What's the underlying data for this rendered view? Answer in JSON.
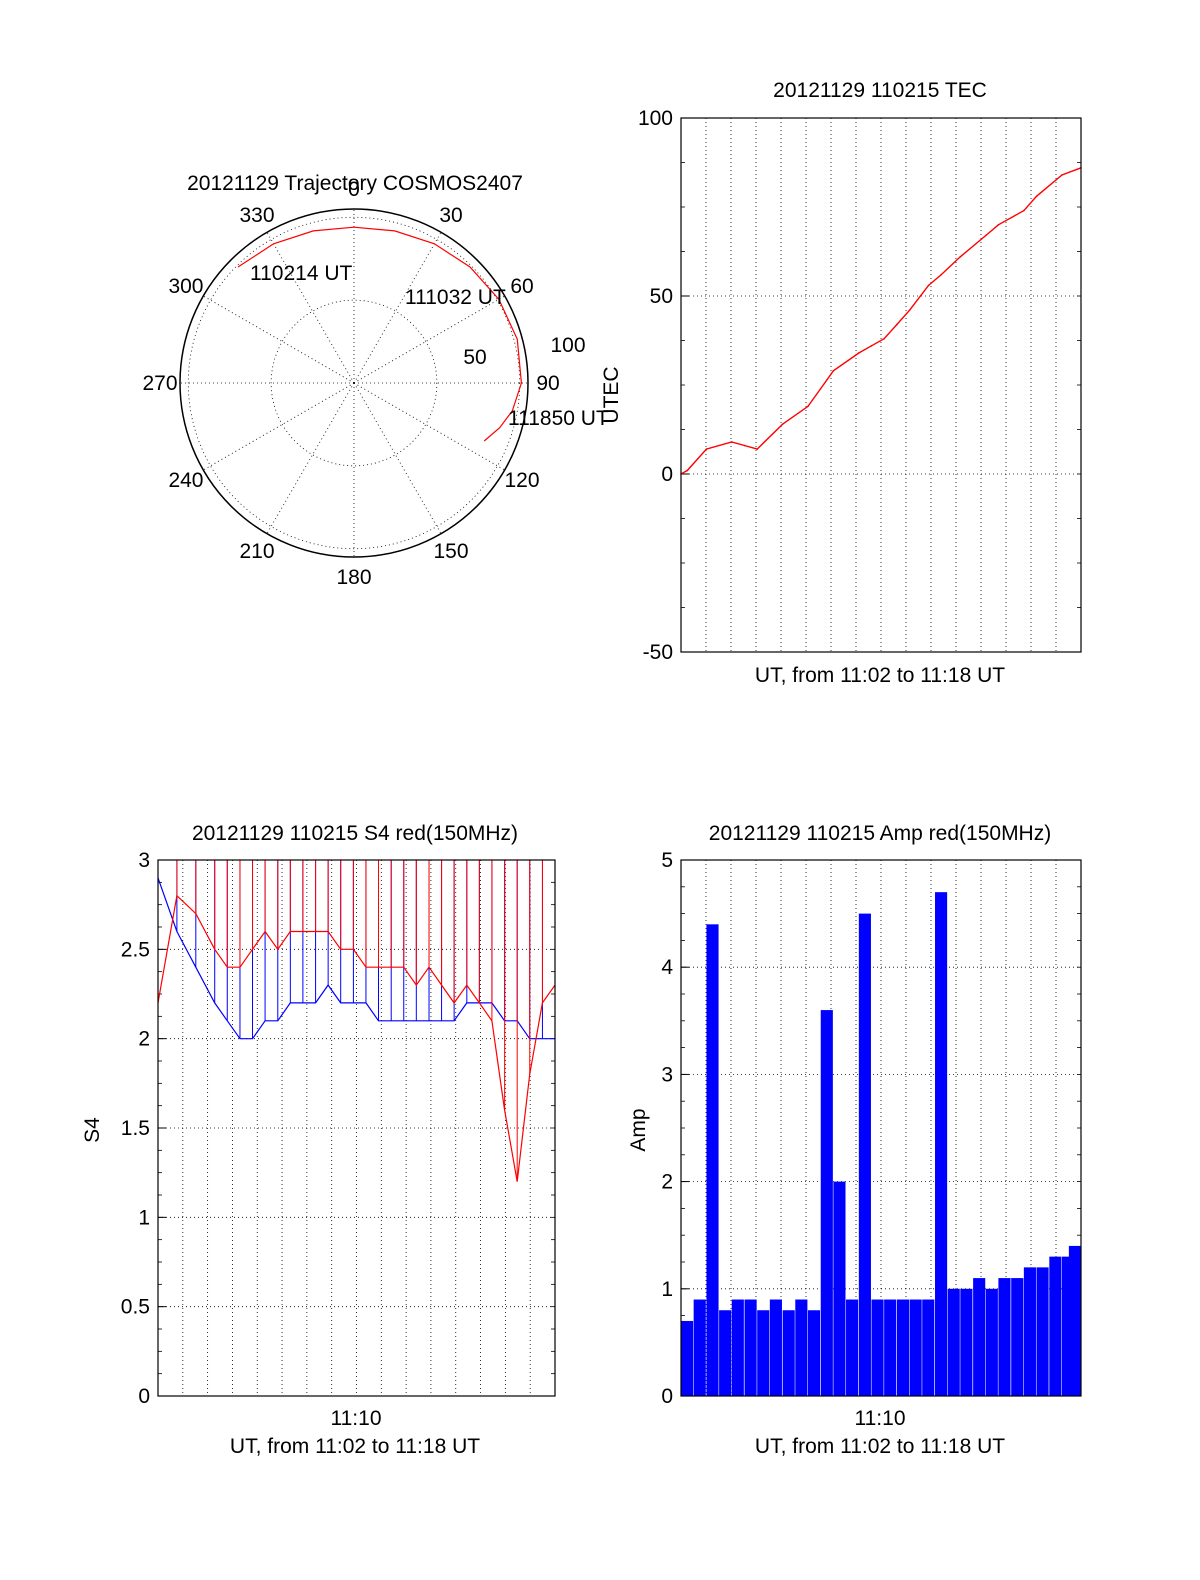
{
  "colors": {
    "red": "#ff0000",
    "blue": "#0000ff",
    "axis": "#000000"
  },
  "chart_data": [
    {
      "type": "polar",
      "title": "20121129 Trajectory COSMOS2407",
      "azimuth_labels": [
        "0",
        "30",
        "60",
        "90",
        "120",
        "150",
        "180",
        "210",
        "240",
        "270",
        "300",
        "330"
      ],
      "radius_labels": [
        "50",
        "100"
      ],
      "point_labels": [
        "110214 UT",
        "111032 UT",
        "111850 UT"
      ],
      "trajectory": {
        "azimuth_deg": [
          315,
          330,
          345,
          0,
          15,
          30,
          45,
          60,
          75,
          90,
          100,
          107,
          114
        ],
        "zenith_deg": [
          99,
          97,
          95,
          94,
          95,
          97,
          99,
          101,
          102,
          101,
          97,
          92,
          86
        ],
        "color": "#ff0000"
      }
    },
    {
      "type": "line",
      "title": "20121129 110215 TEC",
      "xlabel": "UT, from 11:02 to 11:18 UT",
      "ylabel": "UTEC",
      "xlim": [
        11.0375,
        11.3
      ],
      "ylim": [
        -50,
        100
      ],
      "yticks": [
        "100",
        "50",
        "0",
        "-50"
      ],
      "grid": true,
      "series": [
        {
          "color": "#ff0000",
          "x": [
            11.0375,
            11.0417,
            11.0542,
            11.0708,
            11.0792,
            11.0875,
            11.1042,
            11.1208,
            11.1292,
            11.1375,
            11.1542,
            11.1625,
            11.1708,
            11.1792,
            11.1875,
            11.2,
            11.2083,
            11.2208,
            11.2375,
            11.2458,
            11.2625,
            11.2708,
            11.2875,
            11.3
          ],
          "y": [
            0,
            1,
            7,
            9,
            8,
            7,
            14,
            19,
            24,
            29,
            34,
            36,
            38,
            42,
            46,
            53,
            56,
            61,
            67,
            70,
            74,
            78,
            84,
            86
          ]
        }
      ]
    },
    {
      "type": "line",
      "title": "20121129 110215 S4 red(150MHz)",
      "xlabel": "UT, from 11:02 to 11:18 UT",
      "ylabel": "S4",
      "xtick_labels": [
        "11:10"
      ],
      "xlim": [
        11.0375,
        11.3
      ],
      "ylim": [
        0,
        3
      ],
      "yticks": [
        "3",
        "2.5",
        "2",
        "1.5",
        "1",
        "0.5",
        "0"
      ],
      "grid": true,
      "series": [
        {
          "color": "#0000ff",
          "x": [
            11.0375,
            11.05,
            11.0625,
            11.075,
            11.0833,
            11.0917,
            11.1,
            11.1083,
            11.1167,
            11.125,
            11.1333,
            11.1417,
            11.15,
            11.1583,
            11.1667,
            11.175,
            11.1833,
            11.1917,
            11.2,
            11.2083,
            11.2167,
            11.225,
            11.2333,
            11.2417,
            11.25,
            11.2583,
            11.2667,
            11.275,
            11.2833,
            11.2917,
            11.3
          ],
          "y": [
            2.9,
            2.6,
            2.4,
            2.2,
            2.1,
            2.0,
            2.0,
            2.1,
            2.1,
            2.2,
            2.2,
            2.2,
            2.3,
            2.2,
            2.2,
            2.2,
            2.1,
            2.1,
            2.1,
            2.1,
            2.1,
            2.1,
            2.1,
            2.2,
            2.2,
            2.2,
            2.1,
            2.1,
            2.0,
            2.0,
            2.0
          ]
        },
        {
          "color": "#ff0000",
          "x": [
            11.0375,
            11.05,
            11.0625,
            11.075,
            11.0833,
            11.0917,
            11.1,
            11.1083,
            11.1167,
            11.125,
            11.1333,
            11.1417,
            11.15,
            11.1583,
            11.1667,
            11.175,
            11.1833,
            11.1917,
            11.2,
            11.2083,
            11.2167,
            11.225,
            11.2333,
            11.2417,
            11.25,
            11.2583,
            11.2667,
            11.275,
            11.2833,
            11.2917,
            11.3
          ],
          "y": [
            2.2,
            2.8,
            2.7,
            2.5,
            2.4,
            2.4,
            2.5,
            2.6,
            2.5,
            2.6,
            2.6,
            2.6,
            2.6,
            2.5,
            2.5,
            2.4,
            2.4,
            2.4,
            2.4,
            2.3,
            2.4,
            2.3,
            2.2,
            2.3,
            2.2,
            2.1,
            1.6,
            1.2,
            1.8,
            2.2,
            2.3
          ]
        }
      ]
    },
    {
      "type": "bar",
      "title": "20121129 110215 Amp red(150MHz)",
      "xlabel": "UT, from 11:02 to 11:18 UT",
      "ylabel": "Amp",
      "xtick_labels": [
        "11:10"
      ],
      "xlim": [
        11.0375,
        11.3
      ],
      "ylim": [
        0,
        5
      ],
      "yticks": [
        "5",
        "4",
        "3",
        "2",
        "1",
        "0"
      ],
      "grid": true,
      "series": [
        {
          "color": "#0000ff",
          "x": [
            11.0375,
            11.0458,
            11.0542,
            11.0625,
            11.0708,
            11.0792,
            11.0875,
            11.0958,
            11.1042,
            11.1125,
            11.1208,
            11.1292,
            11.1375,
            11.1458,
            11.1542,
            11.1625,
            11.1708,
            11.1792,
            11.1875,
            11.1958,
            11.2042,
            11.2125,
            11.2208,
            11.2292,
            11.2375,
            11.2458,
            11.2542,
            11.2625,
            11.2708,
            11.2792,
            11.2875,
            11.2958,
            11.3
          ],
          "y": [
            0.7,
            0.9,
            4.4,
            0.8,
            0.9,
            0.9,
            0.8,
            0.9,
            0.8,
            0.9,
            0.8,
            3.6,
            2.0,
            0.9,
            4.5,
            0.9,
            0.9,
            0.9,
            0.9,
            0.9,
            4.7,
            1.0,
            1.0,
            1.1,
            1.0,
            1.1,
            1.1,
            1.2,
            1.2,
            1.3,
            1.3,
            1.4,
            1.2
          ]
        }
      ]
    }
  ]
}
